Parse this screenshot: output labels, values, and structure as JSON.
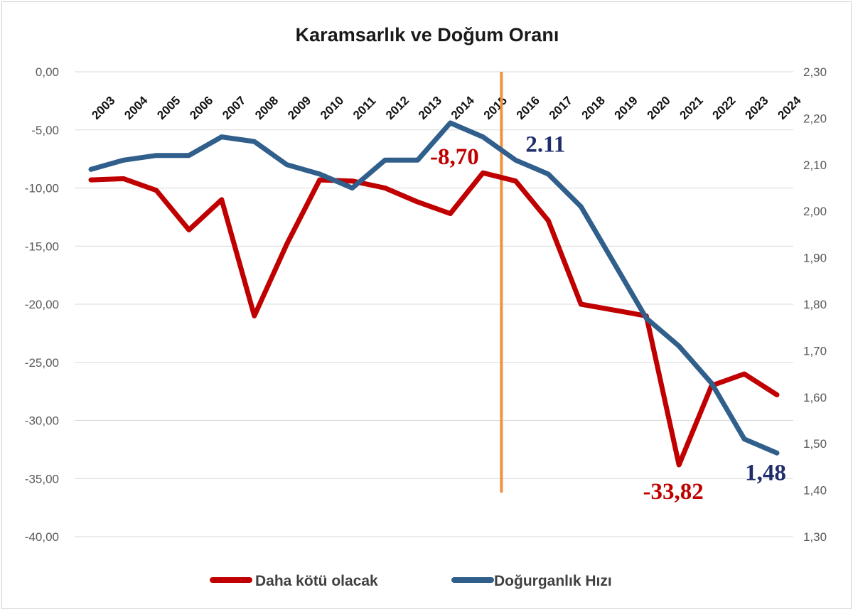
{
  "chart_data": {
    "type": "line",
    "title": "Karamsarlık ve Doğum Oranı",
    "categories": [
      "2003",
      "2004",
      "2005",
      "2006",
      "2007",
      "2008",
      "2009",
      "2010",
      "2011",
      "2012",
      "2013",
      "2014",
      "2015",
      "2016",
      "2017",
      "2018",
      "2019",
      "2020",
      "2021",
      "2022",
      "2023",
      "2024"
    ],
    "y_left": {
      "range": [
        -40,
        0
      ],
      "ticks": [
        0,
        -5,
        -10,
        -15,
        -20,
        -25,
        -30,
        -35,
        -40
      ],
      "tick_labels": [
        "0,00",
        "-5,00",
        "-10,00",
        "-15,00",
        "-20,00",
        "-25,00",
        "-30,00",
        "-35,00",
        "-40,00"
      ]
    },
    "y_right": {
      "range": [
        1.3,
        2.3
      ],
      "ticks": [
        2.3,
        2.2,
        2.1,
        2.0,
        1.9,
        1.8,
        1.7,
        1.6,
        1.5,
        1.4,
        1.3
      ],
      "tick_labels": [
        "2,30",
        "2,20",
        "2,10",
        "2,00",
        "1,90",
        "1,80",
        "1,70",
        "1,60",
        "1,50",
        "1,40",
        "1,30"
      ]
    },
    "series": [
      {
        "name": "Daha kötü olacak",
        "axis": "left",
        "color": "#c00000",
        "values": [
          -9.3,
          -9.2,
          -10.2,
          -13.6,
          -11.0,
          -21.0,
          -14.8,
          -9.3,
          -9.4,
          -10.0,
          -11.2,
          -12.2,
          -8.7,
          -9.4,
          -12.8,
          -20.0,
          -20.5,
          -21.0,
          -33.82,
          -27.0,
          -26.0,
          -27.8
        ]
      },
      {
        "name": "Doğurganlık Hızı",
        "axis": "right",
        "color": "#2f5f8a",
        "values": [
          2.09,
          2.11,
          2.12,
          2.12,
          2.16,
          2.15,
          2.1,
          2.08,
          2.05,
          2.11,
          2.11,
          2.19,
          2.16,
          2.11,
          2.08,
          2.01,
          1.89,
          1.77,
          1.71,
          1.63,
          1.51,
          1.48
        ]
      }
    ],
    "reference_line": {
      "category": "2016",
      "color": "#f0923c"
    },
    "annotations": [
      {
        "text": "-8,70",
        "series": "Daha kötü olacak",
        "category": "2015",
        "color": "#c00000"
      },
      {
        "text": "2.11",
        "series": "Doğurganlık Hızı",
        "category": "2016",
        "color": "#1f2d6b"
      },
      {
        "text": "-33,82",
        "series": "Daha kötü olacak",
        "category": "2021",
        "color": "#c00000"
      },
      {
        "text": "1,48",
        "series": "Doğurganlık Hızı",
        "category": "2024",
        "color": "#1f2d6b"
      }
    ],
    "legend": {
      "position": "bottom"
    },
    "grid": true
  }
}
